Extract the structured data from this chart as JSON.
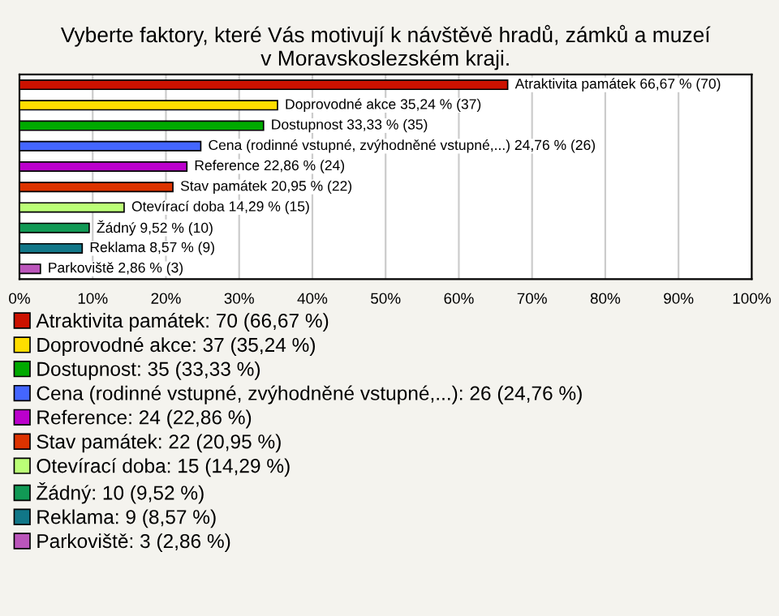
{
  "chart_data": {
    "type": "bar",
    "orientation": "horizontal",
    "title": "Vyberte faktory, které Vás motivují k návštěvě hradů, zámků a muzeí\nv Moravskoslezském kraji.",
    "categories": [
      null,
      null,
      null,
      null,
      null,
      null,
      null,
      null,
      null,
      null
    ],
    "series": [
      {
        "name": "Atraktivita památek: 70 (66,67 %)",
        "color": "#cc1100",
        "values": [
          66.67,
          null,
          null,
          null,
          null,
          null,
          null,
          null,
          null,
          null
        ],
        "value_labels": [
          "Atraktivita památek 66,67 % (70)",
          null,
          null,
          null,
          null,
          null,
          null,
          null,
          null,
          null
        ]
      },
      {
        "name": "Doprovodné akce: 37 (35,24 %)",
        "color": "#ffdd00",
        "values": [
          null,
          35.24,
          null,
          null,
          null,
          null,
          null,
          null,
          null,
          null
        ],
        "value_labels": [
          null,
          "Doprovodné akce 35,24 % (37)",
          null,
          null,
          null,
          null,
          null,
          null,
          null,
          null
        ]
      },
      {
        "name": "Dostupnost: 35 (33,33 %)",
        "color": "#00aa00",
        "values": [
          null,
          null,
          33.33,
          null,
          null,
          null,
          null,
          null,
          null,
          null
        ],
        "value_labels": [
          null,
          null,
          "Dostupnost 33,33 % (35)",
          null,
          null,
          null,
          null,
          null,
          null,
          null
        ]
      },
      {
        "name": "Cena (rodinné vstupné, zvýhodněné vstupné,...): 26 (24,76 %)",
        "color": "#4466ff",
        "values": [
          null,
          null,
          null,
          24.76,
          null,
          null,
          null,
          null,
          null,
          null
        ],
        "value_labels": [
          null,
          null,
          null,
          "Cena (rodinné vstupné, zvýhodněné vstupné,...) 24,76 % (26)",
          null,
          null,
          null,
          null,
          null,
          null
        ]
      },
      {
        "name": "Reference: 24 (22,86 %)",
        "color": "#bb00cc",
        "values": [
          null,
          null,
          null,
          null,
          22.86,
          null,
          null,
          null,
          null,
          null
        ],
        "value_labels": [
          null,
          null,
          null,
          null,
          "Reference 22,86 % (24)",
          null,
          null,
          null,
          null,
          null
        ]
      },
      {
        "name": "Stav památek: 22 (20,95 %)",
        "color": "#dd3300",
        "values": [
          null,
          null,
          null,
          null,
          null,
          20.95,
          null,
          null,
          null,
          null
        ],
        "value_labels": [
          null,
          null,
          null,
          null,
          null,
          "Stav památek 20,95 % (22)",
          null,
          null,
          null,
          null
        ]
      },
      {
        "name": "Otevírací doba: 15 (14,29 %)",
        "color": "#bbff77",
        "values": [
          null,
          null,
          null,
          null,
          null,
          null,
          14.29,
          null,
          null,
          null
        ],
        "value_labels": [
          null,
          null,
          null,
          null,
          null,
          null,
          "Otevírací doba 14,29 % (15)",
          null,
          null,
          null
        ]
      },
      {
        "name": "Žádný: 10 (9,52 %)",
        "color": "#119955",
        "values": [
          null,
          null,
          null,
          null,
          null,
          null,
          null,
          9.52,
          null,
          null
        ],
        "value_labels": [
          null,
          null,
          null,
          null,
          null,
          null,
          null,
          "Žádný 9,52 % (10)",
          null,
          null
        ]
      },
      {
        "name": "Reklama: 9 (8,57 %)",
        "color": "#117788",
        "values": [
          null,
          null,
          null,
          null,
          null,
          null,
          null,
          null,
          8.57,
          null
        ],
        "value_labels": [
          null,
          null,
          null,
          null,
          null,
          null,
          null,
          null,
          "Reklama 8,57 % (9)",
          null
        ]
      },
      {
        "name": "Parkoviště: 3 (2,86 %)",
        "color": "#bb55bb",
        "values": [
          null,
          null,
          null,
          null,
          null,
          null,
          null,
          null,
          null,
          2.86
        ],
        "value_labels": [
          null,
          null,
          null,
          null,
          null,
          null,
          null,
          null,
          null,
          "Parkoviště 2,86 % (3)"
        ]
      }
    ],
    "xlim": [
      0,
      100
    ],
    "xticks": [
      {
        "value": 0,
        "label": "0%"
      },
      {
        "value": 10,
        "label": "10%"
      },
      {
        "value": 20,
        "label": "20%"
      },
      {
        "value": 30,
        "label": "30%"
      },
      {
        "value": 40,
        "label": "40%"
      },
      {
        "value": 50,
        "label": "50%"
      },
      {
        "value": 60,
        "label": "60%"
      },
      {
        "value": 70,
        "label": "70%"
      },
      {
        "value": 80,
        "label": "80%"
      },
      {
        "value": 90,
        "label": "90%"
      },
      {
        "value": 100,
        "label": "100%"
      }
    ],
    "grid": "x",
    "legend": "bottom"
  }
}
